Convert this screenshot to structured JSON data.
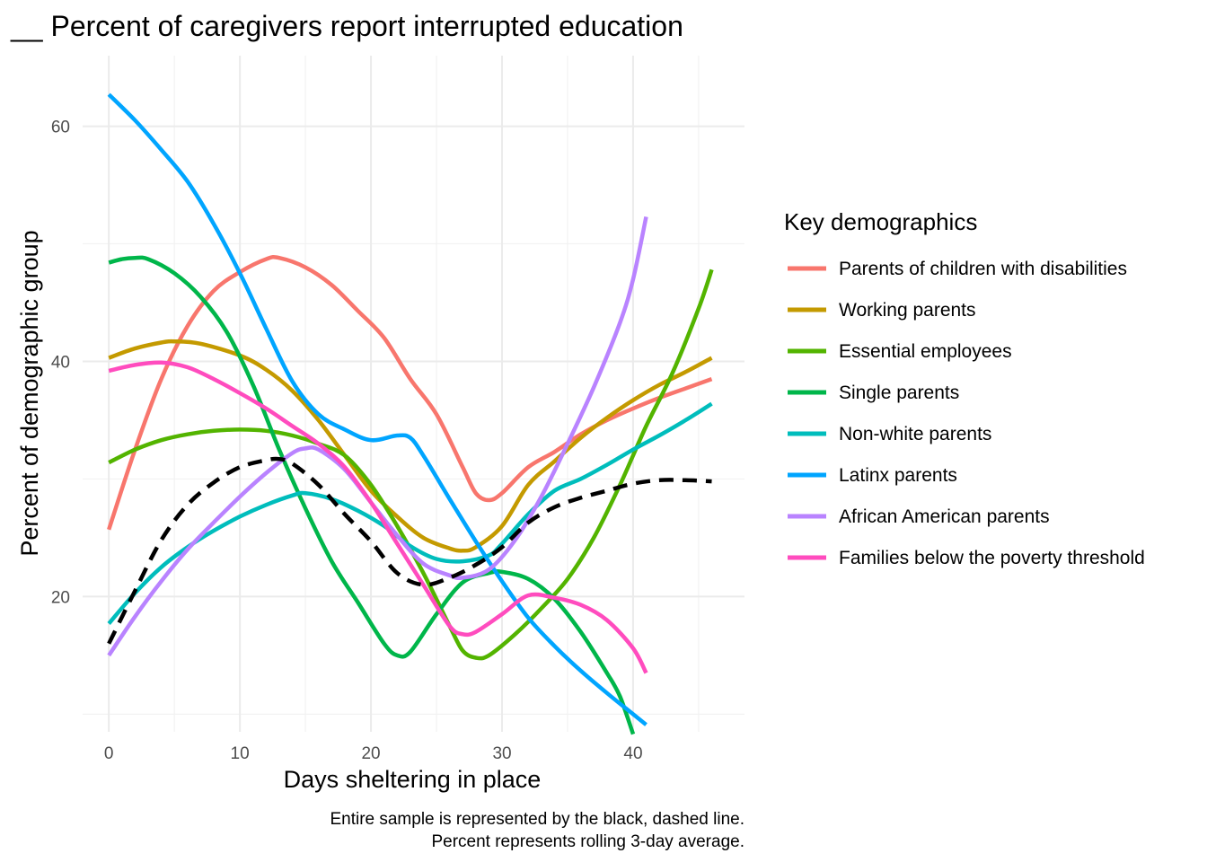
{
  "chart_data": {
    "type": "line",
    "title": "__ Percent of caregivers report interrupted education",
    "xlabel": "Days sheltering in place",
    "ylabel": "Percent of demographic group",
    "xlim": [
      -2,
      48.5
    ],
    "ylim": [
      8.5,
      66
    ],
    "x_ticks": [
      0,
      10,
      20,
      30,
      40
    ],
    "y_ticks": [
      20,
      40,
      60
    ],
    "x_tick_labels": [
      "0",
      "10",
      "20",
      "30",
      "40"
    ],
    "y_tick_labels": [
      "20",
      "40",
      "60"
    ],
    "grid": true,
    "legend": {
      "title": "Key demographics",
      "placement": "right"
    },
    "caption": [
      "Entire sample is represented by the black, dashed line.",
      "Percent represents rolling 3-day average."
    ],
    "series": [
      {
        "name": "Parents of children with disabilities",
        "color": "#F8766D",
        "points": [
          [
            0,
            25.7
          ],
          [
            2,
            32.5
          ],
          [
            4,
            38.5
          ],
          [
            6,
            43.0
          ],
          [
            8,
            46.0
          ],
          [
            10,
            47.6
          ],
          [
            12,
            48.7
          ],
          [
            13,
            48.8
          ],
          [
            15,
            48.0
          ],
          [
            17,
            46.5
          ],
          [
            19,
            44.3
          ],
          [
            21,
            42.0
          ],
          [
            23,
            38.5
          ],
          [
            25,
            35.5
          ],
          [
            27,
            31.0
          ],
          [
            28,
            28.8
          ],
          [
            29,
            28.2
          ],
          [
            30,
            28.8
          ],
          [
            32,
            31.0
          ],
          [
            34,
            32.3
          ],
          [
            36,
            33.8
          ],
          [
            38,
            35.0
          ],
          [
            40,
            36.0
          ],
          [
            42,
            36.9
          ],
          [
            44,
            37.7
          ],
          [
            46,
            38.5
          ]
        ]
      },
      {
        "name": "Working parents",
        "color": "#C49A00",
        "points": [
          [
            0,
            40.3
          ],
          [
            2,
            41.1
          ],
          [
            4,
            41.6
          ],
          [
            5,
            41.7
          ],
          [
            7,
            41.5
          ],
          [
            10,
            40.5
          ],
          [
            12,
            39.3
          ],
          [
            14,
            37.5
          ],
          [
            16,
            35.0
          ],
          [
            18,
            32.0
          ],
          [
            20,
            29.0
          ],
          [
            22,
            26.8
          ],
          [
            24,
            25.0
          ],
          [
            26,
            24.1
          ],
          [
            27,
            23.9
          ],
          [
            28,
            24.2
          ],
          [
            30,
            26.0
          ],
          [
            32,
            29.5
          ],
          [
            34,
            31.5
          ],
          [
            36,
            33.5
          ],
          [
            38,
            35.2
          ],
          [
            40,
            36.7
          ],
          [
            42,
            38.0
          ],
          [
            44,
            39.1
          ],
          [
            46,
            40.3
          ]
        ]
      },
      {
        "name": "Essential employees",
        "color": "#53B400",
        "points": [
          [
            0,
            31.4
          ],
          [
            2,
            32.5
          ],
          [
            4,
            33.3
          ],
          [
            6,
            33.8
          ],
          [
            8,
            34.1
          ],
          [
            10,
            34.2
          ],
          [
            12,
            34.1
          ],
          [
            14,
            33.7
          ],
          [
            16,
            33.0
          ],
          [
            18,
            32.0
          ],
          [
            20,
            29.5
          ],
          [
            22,
            26.0
          ],
          [
            24,
            22.0
          ],
          [
            26,
            17.5
          ],
          [
            27,
            15.4
          ],
          [
            28,
            14.8
          ],
          [
            29,
            15.0
          ],
          [
            31,
            16.8
          ],
          [
            33,
            19.0
          ],
          [
            35,
            21.5
          ],
          [
            37,
            25.0
          ],
          [
            39,
            29.5
          ],
          [
            41,
            34.5
          ],
          [
            43,
            39.0
          ],
          [
            45,
            44.5
          ],
          [
            46,
            47.8
          ]
        ]
      },
      {
        "name": "Single parents",
        "color": "#00B64A",
        "points": [
          [
            0,
            48.4
          ],
          [
            1,
            48.7
          ],
          [
            2,
            48.8
          ],
          [
            3,
            48.7
          ],
          [
            5,
            47.5
          ],
          [
            7,
            45.5
          ],
          [
            9,
            42.5
          ],
          [
            11,
            38.0
          ],
          [
            13,
            32.5
          ],
          [
            15,
            27.5
          ],
          [
            17,
            23.0
          ],
          [
            19,
            19.5
          ],
          [
            21,
            16.0
          ],
          [
            22,
            15.0
          ],
          [
            23,
            15.3
          ],
          [
            25,
            18.5
          ],
          [
            27,
            21.2
          ],
          [
            29,
            22.0
          ],
          [
            30,
            22.1
          ],
          [
            32,
            21.5
          ],
          [
            34,
            19.8
          ],
          [
            36,
            17.0
          ],
          [
            38,
            13.5
          ],
          [
            39,
            11.5
          ],
          [
            40,
            8.3
          ]
        ]
      },
      {
        "name": "Non-white parents",
        "color": "#00BDBC",
        "points": [
          [
            0,
            17.7
          ],
          [
            2,
            20.3
          ],
          [
            4,
            22.5
          ],
          [
            6,
            24.2
          ],
          [
            8,
            25.6
          ],
          [
            10,
            26.8
          ],
          [
            12,
            27.8
          ],
          [
            14,
            28.6
          ],
          [
            15,
            28.8
          ],
          [
            17,
            28.3
          ],
          [
            19,
            27.3
          ],
          [
            21,
            26.0
          ],
          [
            23,
            24.3
          ],
          [
            25,
            23.2
          ],
          [
            27,
            23.0
          ],
          [
            29,
            23.5
          ],
          [
            30,
            24.5
          ],
          [
            32,
            27.0
          ],
          [
            34,
            29.0
          ],
          [
            36,
            30.0
          ],
          [
            38,
            31.2
          ],
          [
            40,
            32.5
          ],
          [
            42,
            33.7
          ],
          [
            44,
            35.0
          ],
          [
            46,
            36.4
          ]
        ]
      },
      {
        "name": "Latinx parents",
        "color": "#00A5FF",
        "points": [
          [
            0,
            62.7
          ],
          [
            2,
            60.5
          ],
          [
            4,
            58.0
          ],
          [
            6,
            55.3
          ],
          [
            8,
            51.7
          ],
          [
            10,
            47.5
          ],
          [
            12,
            42.8
          ],
          [
            14,
            38.3
          ],
          [
            16,
            35.5
          ],
          [
            18,
            34.2
          ],
          [
            20,
            33.3
          ],
          [
            22,
            33.7
          ],
          [
            23,
            33.5
          ],
          [
            24,
            32.0
          ],
          [
            26,
            28.3
          ],
          [
            28,
            24.7
          ],
          [
            30,
            21.3
          ],
          [
            32,
            18.2
          ],
          [
            34,
            15.8
          ],
          [
            36,
            13.7
          ],
          [
            38,
            11.8
          ],
          [
            40,
            10.0
          ],
          [
            41,
            9.1
          ]
        ]
      },
      {
        "name": "African American parents",
        "color": "#B983FF",
        "points": [
          [
            0,
            15.0
          ],
          [
            2,
            18.3
          ],
          [
            4,
            21.3
          ],
          [
            6,
            24.0
          ],
          [
            8,
            26.3
          ],
          [
            10,
            28.5
          ],
          [
            12,
            30.5
          ],
          [
            14,
            32.2
          ],
          [
            15,
            32.6
          ],
          [
            16,
            32.5
          ],
          [
            18,
            30.8
          ],
          [
            20,
            28.0
          ],
          [
            22,
            25.2
          ],
          [
            24,
            22.8
          ],
          [
            26,
            21.8
          ],
          [
            27,
            21.6
          ],
          [
            29,
            22.3
          ],
          [
            31,
            24.8
          ],
          [
            33,
            28.5
          ],
          [
            35,
            33.0
          ],
          [
            37,
            37.8
          ],
          [
            39,
            43.3
          ],
          [
            40,
            47.0
          ],
          [
            41,
            52.3
          ]
        ]
      },
      {
        "name": "Families below the poverty threshold",
        "color": "#FF4CBE",
        "points": [
          [
            0,
            39.2
          ],
          [
            2,
            39.7
          ],
          [
            4,
            39.9
          ],
          [
            6,
            39.5
          ],
          [
            8,
            38.5
          ],
          [
            10,
            37.3
          ],
          [
            12,
            36.0
          ],
          [
            14,
            34.5
          ],
          [
            16,
            33.0
          ],
          [
            18,
            31.0
          ],
          [
            20,
            28.0
          ],
          [
            22,
            24.5
          ],
          [
            24,
            21.0
          ],
          [
            26,
            17.5
          ],
          [
            27,
            16.8
          ],
          [
            28,
            17.0
          ],
          [
            30,
            18.5
          ],
          [
            32,
            20.1
          ],
          [
            34,
            19.9
          ],
          [
            36,
            19.3
          ],
          [
            38,
            18.0
          ],
          [
            40,
            15.6
          ],
          [
            41,
            13.5
          ]
        ]
      },
      {
        "color": "#000000",
        "dash": true,
        "points": [
          [
            0,
            16.0
          ],
          [
            2,
            20.5
          ],
          [
            4,
            24.8
          ],
          [
            6,
            27.8
          ],
          [
            8,
            29.7
          ],
          [
            10,
            31.0
          ],
          [
            12,
            31.6
          ],
          [
            13,
            31.7
          ],
          [
            14,
            31.3
          ],
          [
            16,
            29.5
          ],
          [
            18,
            27.0
          ],
          [
            20,
            24.7
          ],
          [
            22,
            22.0
          ],
          [
            24,
            21.0
          ],
          [
            26,
            21.6
          ],
          [
            28,
            22.7
          ],
          [
            30,
            24.2
          ],
          [
            32,
            26.3
          ],
          [
            34,
            27.6
          ],
          [
            36,
            28.4
          ],
          [
            38,
            29.0
          ],
          [
            40,
            29.6
          ],
          [
            42,
            29.9
          ],
          [
            44,
            29.9
          ],
          [
            46,
            29.8
          ]
        ]
      }
    ]
  }
}
